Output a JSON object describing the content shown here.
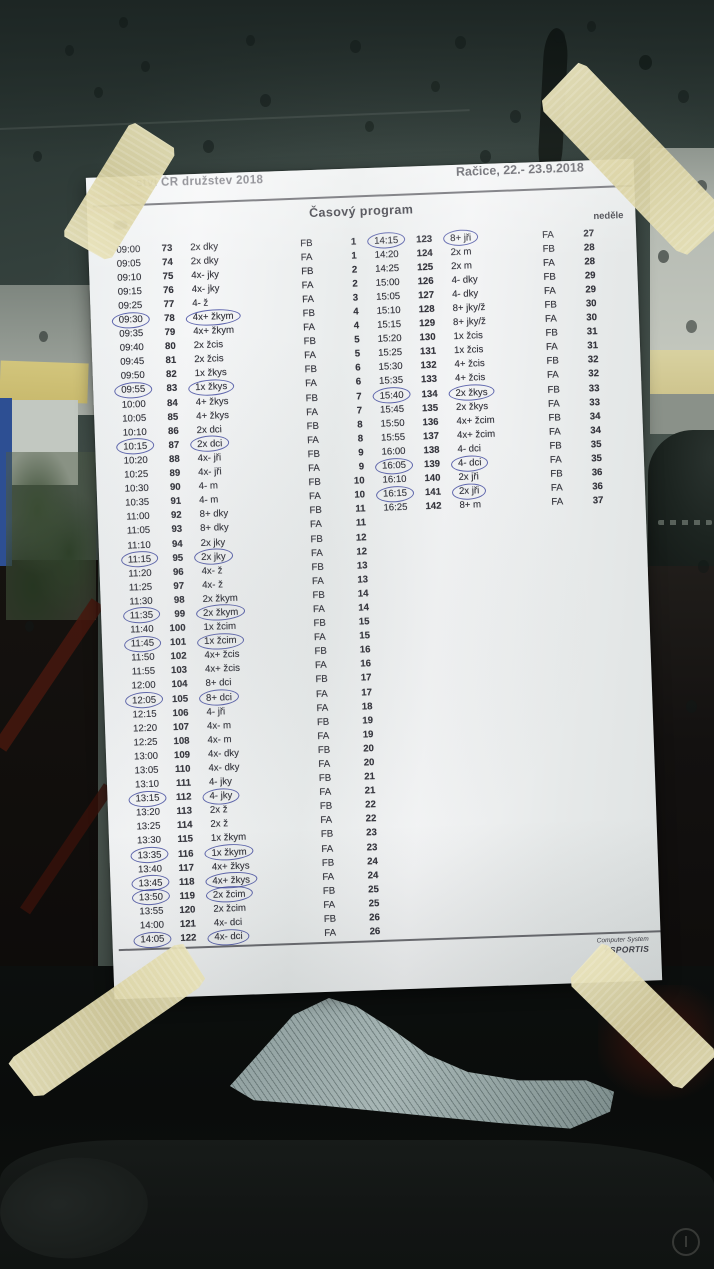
{
  "document": {
    "event_title_fragment": "ství ČR družstev 2018",
    "location_date": "Račice,  22.- 23.9.2018",
    "program_title": "Časový program",
    "day_label": "neděle",
    "footer": {
      "credit_line1": "Computer System",
      "credit_line2": "SPORTIS"
    },
    "schedule": {
      "left_rows": [
        {
          "time": "09:00",
          "race": "73",
          "boat": "2x dky",
          "series": "FB",
          "heat": "1"
        },
        {
          "time": "09:05",
          "race": "74",
          "boat": "2x dky",
          "series": "FA",
          "heat": "1"
        },
        {
          "time": "09:10",
          "race": "75",
          "boat": "4x- jky",
          "series": "FB",
          "heat": "2"
        },
        {
          "time": "09:15",
          "race": "76",
          "boat": "4x- jky",
          "series": "FA",
          "heat": "2"
        },
        {
          "time": "09:25",
          "race": "77",
          "boat": "4- ž",
          "series": "FA",
          "heat": "3"
        },
        {
          "time": "09:30",
          "race": "78",
          "boat": "4x+ žkym",
          "series": "FB",
          "heat": "4",
          "time_circled": true,
          "boat_circled": true
        },
        {
          "time": "09:35",
          "race": "79",
          "boat": "4x+ žkym",
          "series": "FA",
          "heat": "4"
        },
        {
          "time": "09:40",
          "race": "80",
          "boat": "2x žcis",
          "series": "FB",
          "heat": "5"
        },
        {
          "time": "09:45",
          "race": "81",
          "boat": "2x žcis",
          "series": "FA",
          "heat": "5"
        },
        {
          "time": "09:50",
          "race": "82",
          "boat": "1x žkys",
          "series": "FB",
          "heat": "6"
        },
        {
          "time": "09:55",
          "race": "83",
          "boat": "1x žkys",
          "series": "FA",
          "heat": "6",
          "time_circled": true,
          "boat_circled": true
        },
        {
          "time": "10:00",
          "race": "84",
          "boat": "4+ žkys",
          "series": "FB",
          "heat": "7"
        },
        {
          "time": "10:05",
          "race": "85",
          "boat": "4+ žkys",
          "series": "FA",
          "heat": "7"
        },
        {
          "time": "10:10",
          "race": "86",
          "boat": "2x dci",
          "series": "FB",
          "heat": "8"
        },
        {
          "time": "10:15",
          "race": "87",
          "boat": "2x dci",
          "series": "FA",
          "heat": "8",
          "time_circled": true,
          "boat_circled": true
        },
        {
          "time": "10:20",
          "race": "88",
          "boat": "4x- jři",
          "series": "FB",
          "heat": "9"
        },
        {
          "time": "10:25",
          "race": "89",
          "boat": "4x- jři",
          "series": "FA",
          "heat": "9"
        },
        {
          "time": "10:30",
          "race": "90",
          "boat": "4- m",
          "series": "FB",
          "heat": "10"
        },
        {
          "time": "10:35",
          "race": "91",
          "boat": "4- m",
          "series": "FA",
          "heat": "10"
        },
        {
          "time": "11:00",
          "race": "92",
          "boat": "8+ dky",
          "series": "FB",
          "heat": "11"
        },
        {
          "time": "11:05",
          "race": "93",
          "boat": "8+ dky",
          "series": "FA",
          "heat": "11"
        },
        {
          "time": "11:10",
          "race": "94",
          "boat": "2x jky",
          "series": "FB",
          "heat": "12"
        },
        {
          "time": "11:15",
          "race": "95",
          "boat": "2x jky",
          "series": "FA",
          "heat": "12",
          "time_circled": true,
          "boat_circled": true
        },
        {
          "time": "11:20",
          "race": "96",
          "boat": "4x- ž",
          "series": "FB",
          "heat": "13"
        },
        {
          "time": "11:25",
          "race": "97",
          "boat": "4x- ž",
          "series": "FA",
          "heat": "13"
        },
        {
          "time": "11:30",
          "race": "98",
          "boat": "2x žkym",
          "series": "FB",
          "heat": "14"
        },
        {
          "time": "11:35",
          "race": "99",
          "boat": "2x žkym",
          "series": "FA",
          "heat": "14",
          "time_circled": true,
          "boat_circled": true
        },
        {
          "time": "11:40",
          "race": "100",
          "boat": "1x žcim",
          "series": "FB",
          "heat": "15"
        },
        {
          "time": "11:45",
          "race": "101",
          "boat": "1x žcim",
          "series": "FA",
          "heat": "15",
          "time_circled": true,
          "boat_circled": true
        },
        {
          "time": "11:50",
          "race": "102",
          "boat": "4x+ žcis",
          "series": "FB",
          "heat": "16"
        },
        {
          "time": "11:55",
          "race": "103",
          "boat": "4x+ žcis",
          "series": "FA",
          "heat": "16"
        },
        {
          "time": "12:00",
          "race": "104",
          "boat": "8+ dci",
          "series": "FB",
          "heat": "17"
        },
        {
          "time": "12:05",
          "race": "105",
          "boat": "8+ dci",
          "series": "FA",
          "heat": "17",
          "time_circled": true,
          "boat_circled": true
        },
        {
          "time": "12:15",
          "race": "106",
          "boat": "4- jři",
          "series": "FA",
          "heat": "18"
        },
        {
          "time": "12:20",
          "race": "107",
          "boat": "4x- m",
          "series": "FB",
          "heat": "19"
        },
        {
          "time": "12:25",
          "race": "108",
          "boat": "4x- m",
          "series": "FA",
          "heat": "19"
        },
        {
          "time": "13:00",
          "race": "109",
          "boat": "4x- dky",
          "series": "FB",
          "heat": "20"
        },
        {
          "time": "13:05",
          "race": "110",
          "boat": "4x- dky",
          "series": "FA",
          "heat": "20"
        },
        {
          "time": "13:10",
          "race": "111",
          "boat": "4- jky",
          "series": "FB",
          "heat": "21"
        },
        {
          "time": "13:15",
          "race": "112",
          "boat": "4- jky",
          "series": "FA",
          "heat": "21",
          "time_circled": true,
          "boat_circled": true
        },
        {
          "time": "13:20",
          "race": "113",
          "boat": "2x ž",
          "series": "FB",
          "heat": "22"
        },
        {
          "time": "13:25",
          "race": "114",
          "boat": "2x ž",
          "series": "FA",
          "heat": "22"
        },
        {
          "time": "13:30",
          "race": "115",
          "boat": "1x žkym",
          "series": "FB",
          "heat": "23"
        },
        {
          "time": "13:35",
          "race": "116",
          "boat": "1x žkym",
          "series": "FA",
          "heat": "23",
          "time_circled": true,
          "boat_circled": true
        },
        {
          "time": "13:40",
          "race": "117",
          "boat": "4x+ žkys",
          "series": "FB",
          "heat": "24"
        },
        {
          "time": "13:45",
          "race": "118",
          "boat": "4x+ žkys",
          "series": "FA",
          "heat": "24",
          "time_circled": true,
          "boat_circled": true
        },
        {
          "time": "13:50",
          "race": "119",
          "boat": "2x žcim",
          "series": "FB",
          "heat": "25",
          "time_circled": true,
          "boat_circled": true
        },
        {
          "time": "13:55",
          "race": "120",
          "boat": "2x žcim",
          "series": "FA",
          "heat": "25"
        },
        {
          "time": "14:00",
          "race": "121",
          "boat": "4x- dci",
          "series": "FB",
          "heat": "26"
        },
        {
          "time": "14:05",
          "race": "122",
          "boat": "4x- dci",
          "series": "FA",
          "heat": "26",
          "time_circled": true,
          "boat_circled": true
        }
      ],
      "right_rows": [
        {
          "time": "14:15",
          "race": "123",
          "boat": "8+ jři",
          "series": "FA",
          "heat": "27",
          "time_circled": true,
          "boat_circled": true
        },
        {
          "time": "14:20",
          "race": "124",
          "boat": "2x m",
          "series": "FB",
          "heat": "28"
        },
        {
          "time": "14:25",
          "race": "125",
          "boat": "2x m",
          "series": "FA",
          "heat": "28"
        },
        {
          "time": "15:00",
          "race": "126",
          "boat": "4- dky",
          "series": "FB",
          "heat": "29"
        },
        {
          "time": "15:05",
          "race": "127",
          "boat": "4- dky",
          "series": "FA",
          "heat": "29"
        },
        {
          "time": "15:10",
          "race": "128",
          "boat": "8+ jky/ž",
          "series": "FB",
          "heat": "30"
        },
        {
          "time": "15:15",
          "race": "129",
          "boat": "8+ jky/ž",
          "series": "FA",
          "heat": "30"
        },
        {
          "time": "15:20",
          "race": "130",
          "boat": "1x žcis",
          "series": "FB",
          "heat": "31"
        },
        {
          "time": "15:25",
          "race": "131",
          "boat": "1x žcis",
          "series": "FA",
          "heat": "31"
        },
        {
          "time": "15:30",
          "race": "132",
          "boat": "4+ žcis",
          "series": "FB",
          "heat": "32"
        },
        {
          "time": "15:35",
          "race": "133",
          "boat": "4+ žcis",
          "series": "FA",
          "heat": "32"
        },
        {
          "time": "15:40",
          "race": "134",
          "boat": "2x žkys",
          "series": "FB",
          "heat": "33",
          "time_circled": true,
          "boat_circled": true
        },
        {
          "time": "15:45",
          "race": "135",
          "boat": "2x žkys",
          "series": "FA",
          "heat": "33"
        },
        {
          "time": "15:50",
          "race": "136",
          "boat": "4x+ žcim",
          "series": "FB",
          "heat": "34"
        },
        {
          "time": "15:55",
          "race": "137",
          "boat": "4x+ žcim",
          "series": "FA",
          "heat": "34"
        },
        {
          "time": "16:00",
          "race": "138",
          "boat": "4- dci",
          "series": "FB",
          "heat": "35"
        },
        {
          "time": "16:05",
          "race": "139",
          "boat": "4- dci",
          "series": "FA",
          "heat": "35",
          "time_circled": true,
          "boat_circled": true
        },
        {
          "time": "16:10",
          "race": "140",
          "boat": "2x jři",
          "series": "FB",
          "heat": "36"
        },
        {
          "time": "16:15",
          "race": "141",
          "boat": "2x jři",
          "series": "FA",
          "heat": "36",
          "time_circled": true,
          "boat_circled": true
        },
        {
          "time": "16:25",
          "race": "142",
          "boat": "8+ m",
          "series": "FA",
          "heat": "37"
        }
      ]
    }
  }
}
